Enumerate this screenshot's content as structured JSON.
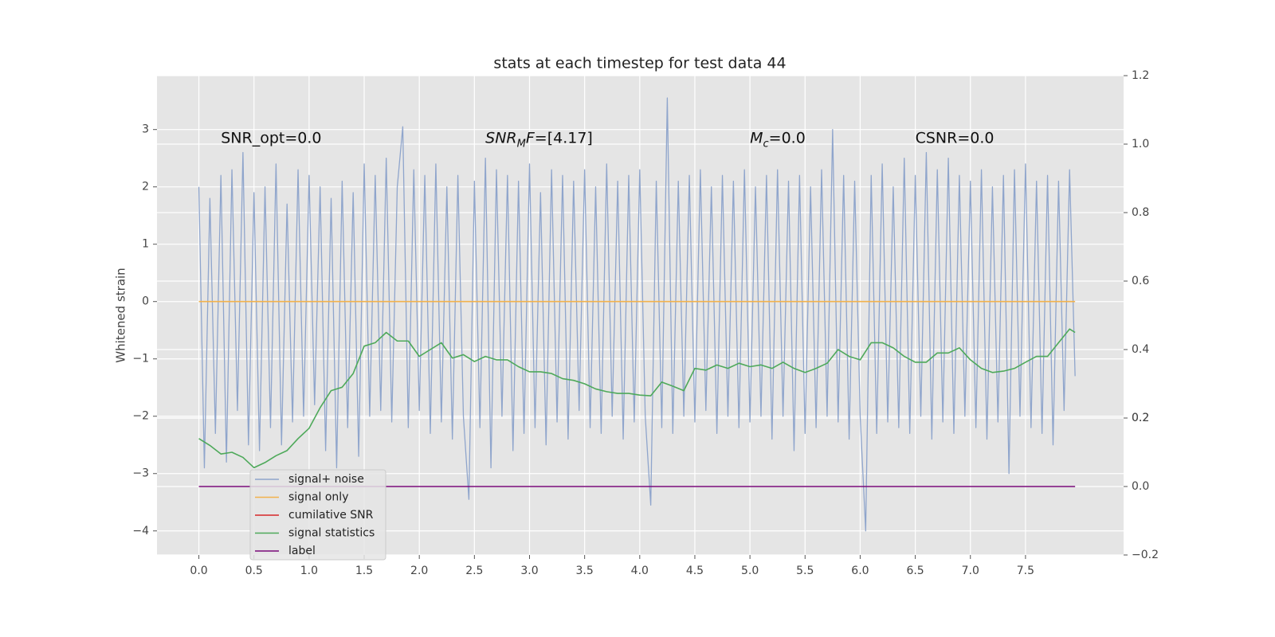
{
  "chart_data": {
    "type": "line",
    "title": "stats at each timestep for test data 44",
    "ylabel": "Whitened strain",
    "xlim": [
      -0.38,
      8.39
    ],
    "ylim": [
      -4.42,
      3.94
    ],
    "y2lim": [
      -0.2,
      1.2
    ],
    "xticks": [
      {
        "value": 0,
        "label": "0.0"
      },
      {
        "value": 0.5,
        "label": "0.5"
      },
      {
        "value": 1,
        "label": "1.0"
      },
      {
        "value": 1.5,
        "label": "1.5"
      },
      {
        "value": 2,
        "label": "2.0"
      },
      {
        "value": 2.5,
        "label": "2.5"
      },
      {
        "value": 3,
        "label": "3.0"
      },
      {
        "value": 3.5,
        "label": "3.5"
      },
      {
        "value": 4,
        "label": "4.0"
      },
      {
        "value": 4.5,
        "label": "4.5"
      },
      {
        "value": 5,
        "label": "5.0"
      },
      {
        "value": 5.5,
        "label": "5.5"
      },
      {
        "value": 6,
        "label": "6.0"
      },
      {
        "value": 6.5,
        "label": "6.5"
      },
      {
        "value": 7,
        "label": "7.0"
      },
      {
        "value": 7.5,
        "label": "7.5"
      }
    ],
    "yticks": [
      {
        "value": -4,
        "label": "−4"
      },
      {
        "value": -3,
        "label": "−3"
      },
      {
        "value": -2,
        "label": "−2"
      },
      {
        "value": -1,
        "label": "−1"
      },
      0,
      1,
      2,
      3
    ],
    "y2ticks": [
      {
        "value": -0.2,
        "label": "−0.2"
      },
      {
        "value": 0,
        "label": "0.0"
      },
      0.2,
      0.4,
      0.6,
      0.8,
      {
        "value": 1,
        "label": "1.0"
      },
      0.2,
      {
        "value": 1.2,
        "label": "1.2"
      }
    ],
    "grid": true,
    "legend": "lower left",
    "annotations": [
      {
        "x": 0.2,
        "y": 2.85,
        "parts": [
          {
            "text": "SNR_opt=0.0"
          }
        ]
      },
      {
        "x": 2.6,
        "y": 2.85,
        "parts": [
          {
            "text": "SNR",
            "style": "italic"
          },
          {
            "text": "M",
            "style": "italic",
            "sub": true
          },
          {
            "text": "F",
            "style": "italic"
          },
          {
            "text": "=[4.17]"
          }
        ]
      },
      {
        "x": 5.0,
        "y": 2.85,
        "parts": [
          {
            "text": "M",
            "style": "italic"
          },
          {
            "text": "c",
            "style": "italic",
            "sub": true
          },
          {
            "text": "=0.0"
          }
        ]
      },
      {
        "x": 6.5,
        "y": 2.85,
        "parts": [
          {
            "text": "CSNR=0.0"
          }
        ]
      }
    ],
    "series": [
      {
        "name": "signal+ noise",
        "color": "#8fa5cc",
        "x": [
          0,
          0.05,
          0.1,
          0.15,
          0.2,
          0.25,
          0.3,
          0.35,
          0.4,
          0.45,
          0.5,
          0.55,
          0.6,
          0.65,
          0.7,
          0.75,
          0.8,
          0.85,
          0.9,
          0.95,
          1,
          1.05,
          1.1,
          1.15,
          1.2,
          1.25,
          1.3,
          1.35,
          1.4,
          1.45,
          1.5,
          1.55,
          1.6,
          1.65,
          1.7,
          1.75,
          1.8,
          1.85,
          1.9,
          1.95,
          2,
          2.05,
          2.1,
          2.15,
          2.2,
          2.25,
          2.3,
          2.35,
          2.4,
          2.45,
          2.5,
          2.55,
          2.6,
          2.65,
          2.7,
          2.75,
          2.8,
          2.85,
          2.9,
          2.95,
          3,
          3.05,
          3.1,
          3.15,
          3.2,
          3.25,
          3.3,
          3.35,
          3.4,
          3.45,
          3.5,
          3.55,
          3.6,
          3.65,
          3.7,
          3.75,
          3.8,
          3.85,
          3.9,
          3.95,
          4,
          4.05,
          4.1,
          4.15,
          4.2,
          4.25,
          4.3,
          4.35,
          4.4,
          4.45,
          4.5,
          4.55,
          4.6,
          4.65,
          4.7,
          4.75,
          4.8,
          4.85,
          4.9,
          4.95,
          5,
          5.05,
          5.1,
          5.15,
          5.2,
          5.25,
          5.3,
          5.35,
          5.4,
          5.45,
          5.5,
          5.55,
          5.6,
          5.65,
          5.7,
          5.75,
          5.8,
          5.85,
          5.9,
          5.95,
          6,
          6.05,
          6.1,
          6.15,
          6.2,
          6.25,
          6.3,
          6.35,
          6.4,
          6.45,
          6.5,
          6.55,
          6.6,
          6.65,
          6.7,
          6.75,
          6.8,
          6.85,
          6.9,
          6.95,
          7,
          7.05,
          7.1,
          7.15,
          7.2,
          7.25,
          7.3,
          7.35,
          7.4,
          7.45,
          7.5,
          7.55,
          7.6,
          7.65,
          7.7,
          7.75,
          7.8,
          7.85,
          7.9,
          7.95
        ],
        "values": [
          2.0,
          -2.9,
          1.8,
          -2.3,
          2.2,
          -2.8,
          2.3,
          -1.9,
          2.6,
          -2.5,
          1.9,
          -2.6,
          2.0,
          -2.2,
          2.4,
          -2.5,
          1.7,
          -2.1,
          2.3,
          -2.0,
          2.2,
          -1.8,
          2.0,
          -2.6,
          1.8,
          -2.9,
          2.1,
          -2.2,
          1.9,
          -2.7,
          2.4,
          -2.0,
          2.2,
          -1.9,
          2.5,
          -2.1,
          2.0,
          3.05,
          -2.2,
          2.3,
          -1.9,
          2.2,
          -2.3,
          2.4,
          -2.1,
          2.0,
          -2.4,
          2.2,
          -2.0,
          -3.45,
          2.1,
          -2.2,
          2.5,
          -2.9,
          2.3,
          -2.0,
          2.2,
          -2.6,
          2.1,
          -2.3,
          2.4,
          -2.2,
          1.9,
          -2.5,
          2.3,
          -2.1,
          2.2,
          -2.4,
          2.1,
          -1.9,
          2.3,
          -2.2,
          2.0,
          -2.3,
          2.4,
          -2.0,
          2.1,
          -2.4,
          2.2,
          -2.1,
          2.3,
          -2.0,
          -3.55,
          2.1,
          -2.2,
          3.55,
          -2.3,
          2.1,
          -2.0,
          2.2,
          -2.1,
          2.3,
          -1.9,
          2.0,
          -2.3,
          2.2,
          -2.0,
          2.1,
          -2.2,
          2.3,
          -2.1,
          2.0,
          -2.0,
          2.2,
          -2.4,
          2.3,
          -2.0,
          2.1,
          -2.6,
          2.2,
          -2.3,
          2.0,
          -2.2,
          2.3,
          -2.0,
          3.0,
          -2.1,
          2.2,
          -2.4,
          2.1,
          -2.0,
          -4.0,
          2.2,
          -2.3,
          2.4,
          -2.1,
          2.0,
          -2.2,
          2.5,
          -2.3,
          2.2,
          -2.0,
          2.6,
          -2.4,
          2.3,
          -2.1,
          2.5,
          -2.3,
          2.2,
          -2.0,
          2.1,
          -2.2,
          2.3,
          -2.4,
          2.0,
          -2.1,
          2.2,
          -3.0,
          2.3,
          -2.0,
          2.4,
          -2.2,
          2.1,
          -2.3,
          2.2,
          -2.5,
          2.1,
          -1.9,
          2.3,
          -1.3
        ]
      },
      {
        "name": "signal only",
        "color": "#f2b24d",
        "x": [
          0,
          7.95
        ],
        "values": [
          0,
          0
        ]
      },
      {
        "name": "cumilative SNR",
        "color": "#d62728",
        "x": [],
        "values": []
      },
      {
        "name": "signal statistics",
        "color": "#4ea95a",
        "axis": "y2",
        "x": [
          0,
          0.1,
          0.2,
          0.3,
          0.4,
          0.5,
          0.6,
          0.7,
          0.8,
          0.9,
          1,
          1.1,
          1.2,
          1.3,
          1.4,
          1.5,
          1.6,
          1.7,
          1.8,
          1.9,
          2,
          2.1,
          2.2,
          2.3,
          2.4,
          2.5,
          2.6,
          2.7,
          2.8,
          2.9,
          3,
          3.1,
          3.2,
          3.3,
          3.4,
          3.5,
          3.6,
          3.7,
          3.8,
          3.9,
          4,
          4.1,
          4.2,
          4.3,
          4.4,
          4.5,
          4.6,
          4.7,
          4.8,
          4.9,
          5,
          5.1,
          5.2,
          5.3,
          5.4,
          5.5,
          5.6,
          5.7,
          5.8,
          5.9,
          6,
          6.1,
          6.2,
          6.3,
          6.4,
          6.5,
          6.6,
          6.7,
          6.8,
          6.9,
          7,
          7.1,
          7.2,
          7.3,
          7.4,
          7.5,
          7.6,
          7.7,
          7.8,
          7.9,
          7.95
        ],
        "values": [
          0.14,
          0.12,
          0.095,
          0.1,
          0.085,
          0.055,
          0.07,
          0.09,
          0.105,
          0.14,
          0.17,
          0.23,
          0.28,
          0.29,
          0.33,
          0.41,
          0.42,
          0.45,
          0.425,
          0.425,
          0.38,
          0.4,
          0.42,
          0.375,
          0.385,
          0.365,
          0.38,
          0.37,
          0.37,
          0.35,
          0.335,
          0.335,
          0.33,
          0.315,
          0.31,
          0.3,
          0.285,
          0.277,
          0.272,
          0.272,
          0.267,
          0.265,
          0.305,
          0.293,
          0.28,
          0.345,
          0.34,
          0.355,
          0.345,
          0.36,
          0.35,
          0.355,
          0.345,
          0.363,
          0.345,
          0.333,
          0.345,
          0.36,
          0.4,
          0.38,
          0.37,
          0.42,
          0.42,
          0.405,
          0.38,
          0.363,
          0.363,
          0.39,
          0.39,
          0.405,
          0.37,
          0.345,
          0.333,
          0.337,
          0.345,
          0.363,
          0.38,
          0.38,
          0.42,
          0.46,
          0.45
        ]
      },
      {
        "name": "label",
        "color": "#7a0a7a",
        "axis": "y2",
        "x": [
          0,
          7.95
        ],
        "values": [
          0,
          0
        ]
      }
    ]
  }
}
